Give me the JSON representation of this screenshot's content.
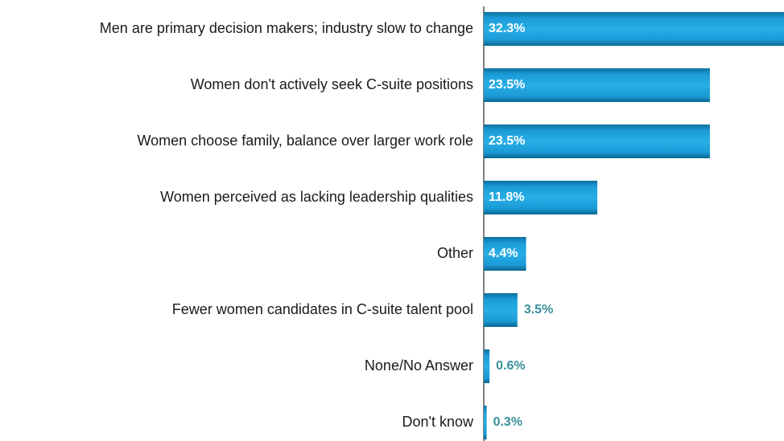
{
  "chart_data": {
    "type": "bar",
    "orientation": "horizontal",
    "categories": [
      "Men are primary decision makers; industry slow to change",
      "Women don't actively seek C-suite positions",
      "Women choose family, balance over larger work role",
      "Women perceived as lacking leadership qualities",
      "Other",
      "Fewer women candidates in C-suite talent pool",
      "None/No Answer",
      "Don't know"
    ],
    "values": [
      32.3,
      23.5,
      23.5,
      11.8,
      4.4,
      3.5,
      0.6,
      0.3
    ],
    "value_labels": [
      "32.3%",
      "23.5%",
      "23.5%",
      "11.8%",
      "4.4%",
      "3.5%",
      "0.6%",
      "0.3%"
    ],
    "color": "#1b9bd7",
    "xlim": [
      0,
      31.2
    ]
  }
}
